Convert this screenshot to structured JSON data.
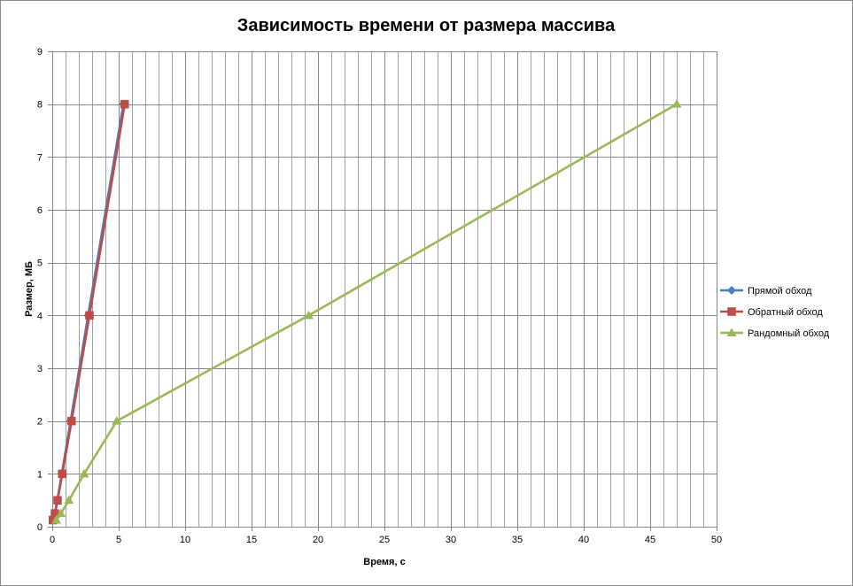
{
  "chart_data": {
    "type": "line",
    "title": "Зависимость времени от размера массива",
    "xlabel": "Время, с",
    "ylabel": "Размер, МБ",
    "xlim": [
      0,
      50
    ],
    "ylim": [
      0,
      9
    ],
    "x_ticks": [
      0,
      5,
      10,
      15,
      20,
      25,
      30,
      35,
      40,
      45,
      50
    ],
    "y_ticks": [
      0,
      1,
      2,
      3,
      4,
      5,
      6,
      7,
      8,
      9
    ],
    "x_minor_step": 1,
    "grid": true,
    "legend": "right",
    "series": [
      {
        "name": "Прямой обход",
        "color": "#4a7ebb",
        "marker": "diamond",
        "points": [
          [
            0.05,
            0.125
          ],
          [
            0.2,
            0.25
          ],
          [
            0.38,
            0.5
          ],
          [
            0.72,
            1
          ],
          [
            1.38,
            2
          ],
          [
            2.7,
            4
          ],
          [
            5.35,
            8
          ]
        ]
      },
      {
        "name": "Обратный обход",
        "color": "#be4b48",
        "marker": "square",
        "points": [
          [
            0.05,
            0.125
          ],
          [
            0.2,
            0.25
          ],
          [
            0.4,
            0.5
          ],
          [
            0.75,
            1
          ],
          [
            1.45,
            2
          ],
          [
            2.8,
            4
          ],
          [
            5.45,
            8
          ]
        ]
      },
      {
        "name": "Рандомный обход",
        "color": "#98b954",
        "marker": "triangle",
        "points": [
          [
            0.3,
            0.125
          ],
          [
            0.65,
            0.25
          ],
          [
            1.25,
            0.5
          ],
          [
            2.4,
            1
          ],
          [
            4.85,
            2
          ],
          [
            19.3,
            4
          ],
          [
            47.0,
            8
          ]
        ]
      }
    ]
  }
}
